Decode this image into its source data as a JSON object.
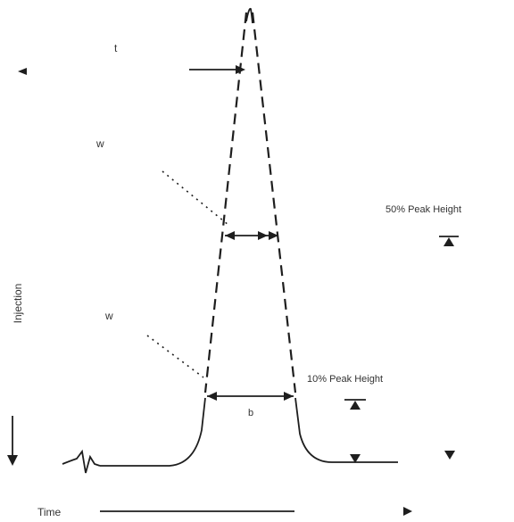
{
  "labels": {
    "retention_time": "t",
    "width_half_height": "w",
    "width_base": "w",
    "half_height": "50% Peak Height",
    "base_height": "10% Peak Height",
    "baseline_width": "b",
    "y_axis": "Injection",
    "x_axis": "Time"
  },
  "colors": {
    "ink": "#1e1e1e",
    "text": "#333333",
    "background": "#ffffff"
  }
}
